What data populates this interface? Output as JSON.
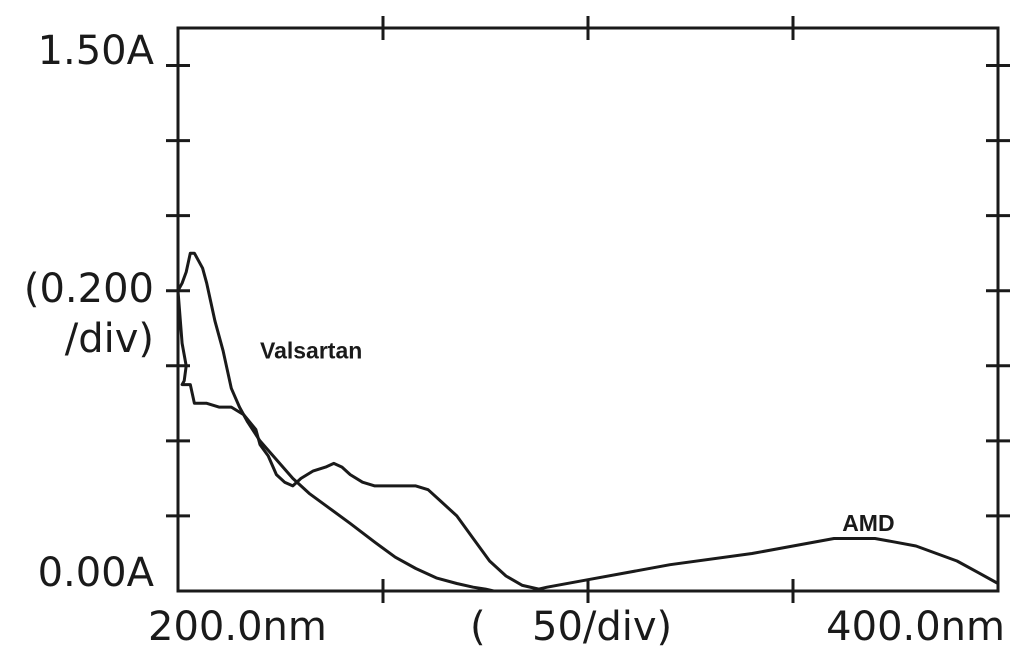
{
  "chart_data": {
    "type": "line",
    "x_unit": "nm",
    "y_unit": "A",
    "xlim": [
      200,
      400
    ],
    "ylim": [
      0,
      1.5
    ],
    "x_tick_step": 50,
    "y_tick_step": 0.2,
    "y_axis_labels": {
      "top": "1.50A",
      "bottom": "0.00A",
      "scale_line1": "(0.200",
      "scale_line2": "/div)"
    },
    "x_axis_labels": {
      "left": "200.0nm",
      "paren": "(",
      "scale": "50/div)",
      "right": "400.0nm"
    },
    "series": [
      {
        "name": "Valsartan",
        "points": [
          [
            200,
            0.8
          ],
          [
            201,
            0.82
          ],
          [
            202,
            0.85
          ],
          [
            203,
            0.9
          ],
          [
            204,
            0.9
          ],
          [
            205,
            0.88
          ],
          [
            206,
            0.86
          ],
          [
            207,
            0.82
          ],
          [
            208,
            0.77
          ],
          [
            209,
            0.72
          ],
          [
            210,
            0.68
          ],
          [
            211,
            0.64
          ],
          [
            212,
            0.59
          ],
          [
            213,
            0.54
          ],
          [
            215,
            0.49
          ],
          [
            217,
            0.45
          ],
          [
            220,
            0.4
          ],
          [
            224,
            0.35
          ],
          [
            228,
            0.3
          ],
          [
            232,
            0.26
          ],
          [
            237,
            0.22
          ],
          [
            242,
            0.18
          ],
          [
            248,
            0.13
          ],
          [
            253,
            0.09
          ],
          [
            258,
            0.06
          ],
          [
            263,
            0.035
          ],
          [
            268,
            0.02
          ],
          [
            272,
            0.01
          ],
          [
            275,
            0.005
          ],
          [
            277,
            0
          ]
        ]
      },
      {
        "name": "AMD",
        "points": [
          [
            200,
            0.8
          ],
          [
            201,
            0.66
          ],
          [
            202,
            0.6
          ],
          [
            201.5,
            0.56
          ],
          [
            201,
            0.55
          ],
          [
            203,
            0.55
          ],
          [
            204,
            0.5
          ],
          [
            207,
            0.5
          ],
          [
            210,
            0.49
          ],
          [
            213,
            0.49
          ],
          [
            216,
            0.47
          ],
          [
            219,
            0.43
          ],
          [
            220,
            0.39
          ],
          [
            222,
            0.36
          ],
          [
            224,
            0.31
          ],
          [
            226,
            0.29
          ],
          [
            228,
            0.28
          ],
          [
            230,
            0.3
          ],
          [
            233,
            0.32
          ],
          [
            236,
            0.33
          ],
          [
            238,
            0.34
          ],
          [
            240,
            0.33
          ],
          [
            242,
            0.31
          ],
          [
            245,
            0.29
          ],
          [
            248,
            0.28
          ],
          [
            253,
            0.28
          ],
          [
            258,
            0.28
          ],
          [
            261,
            0.27
          ],
          [
            264,
            0.24
          ],
          [
            268,
            0.2
          ],
          [
            272,
            0.14
          ],
          [
            276,
            0.08
          ],
          [
            280,
            0.04
          ],
          [
            284,
            0.015
          ],
          [
            288,
            0.005
          ],
          [
            290,
            0.01
          ],
          [
            300,
            0.03
          ],
          [
            320,
            0.07
          ],
          [
            340,
            0.1
          ],
          [
            350,
            0.12
          ],
          [
            360,
            0.14
          ],
          [
            365,
            0.14
          ],
          [
            370,
            0.14
          ],
          [
            375,
            0.13
          ],
          [
            380,
            0.12
          ],
          [
            385,
            0.1
          ],
          [
            390,
            0.08
          ],
          [
            395,
            0.05
          ],
          [
            400,
            0.02
          ]
        ]
      }
    ],
    "annotations": [
      {
        "text": "Valsartan",
        "x": 220,
        "y": 0.62
      },
      {
        "text": "AMD",
        "x": 362,
        "y": 0.16
      }
    ]
  }
}
